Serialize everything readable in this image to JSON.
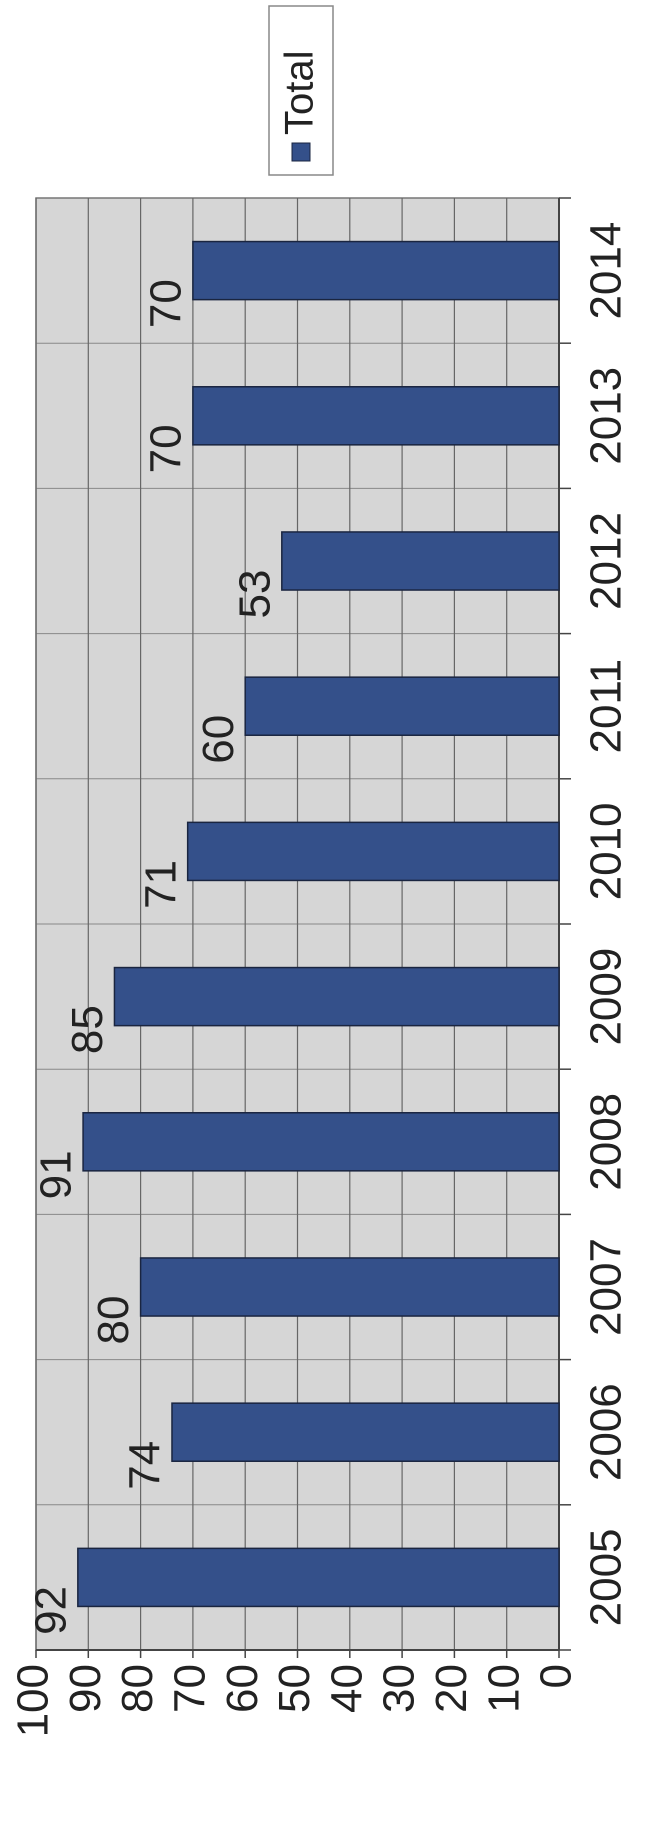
{
  "chart_data": {
    "type": "bar",
    "categories": [
      "2005",
      "2006",
      "2007",
      "2008",
      "2009",
      "2010",
      "2011",
      "2012",
      "2013",
      "2014"
    ],
    "series": [
      {
        "name": "Total",
        "color": "#34508a",
        "values": [
          92,
          74,
          80,
          91,
          85,
          71,
          60,
          53,
          70,
          70
        ]
      }
    ],
    "ylim": [
      0,
      100
    ],
    "yticks": [
      0,
      10,
      20,
      30,
      40,
      50,
      60,
      70,
      80,
      90,
      100
    ],
    "grid": true
  }
}
